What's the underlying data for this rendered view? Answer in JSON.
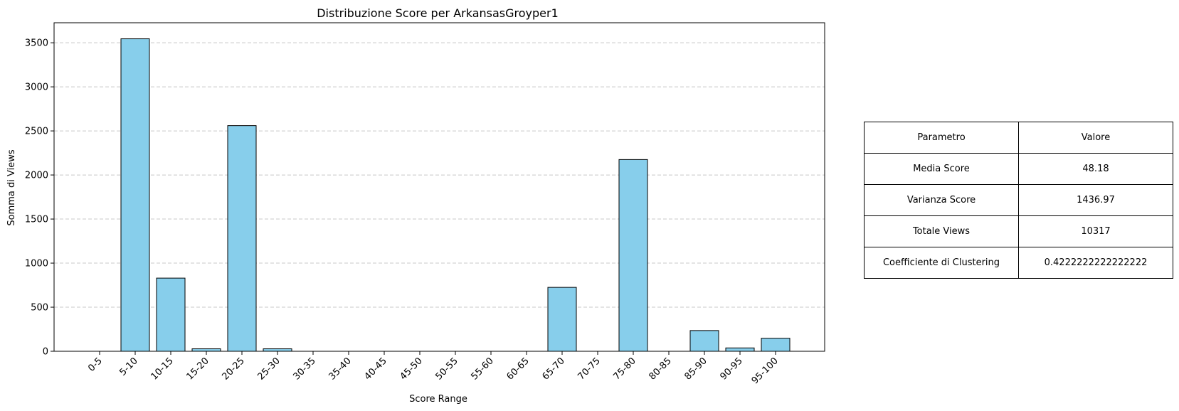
{
  "chart_data": {
    "type": "bar",
    "title": "Distribuzione Score per ArkansasGroyper1",
    "xlabel": "Score Range",
    "ylabel": "Somma di Views",
    "categories": [
      "0-5",
      "5-10",
      "10-15",
      "15-20",
      "20-25",
      "25-30",
      "30-35",
      "35-40",
      "40-45",
      "45-50",
      "50-55",
      "55-60",
      "60-65",
      "65-70",
      "70-75",
      "75-80",
      "80-85",
      "85-90",
      "90-95",
      "95-100"
    ],
    "values": [
      0,
      3545,
      830,
      28,
      2560,
      28,
      0,
      0,
      0,
      0,
      0,
      0,
      0,
      725,
      0,
      2175,
      0,
      235,
      38,
      148
    ],
    "ylim": [
      0,
      3727
    ],
    "yticks": [
      0,
      500,
      1000,
      1500,
      2000,
      2500,
      3000,
      3500
    ],
    "grid": "y-dashed",
    "bar_color": "#87ceeb",
    "edge_color": "#000000"
  },
  "table": {
    "header": {
      "param": "Parametro",
      "value": "Valore"
    },
    "rows": [
      {
        "param": "Media Score",
        "value": "48.18"
      },
      {
        "param": "Varianza Score",
        "value": "1436.97"
      },
      {
        "param": "Totale Views",
        "value": "10317"
      },
      {
        "param": "Coefficiente di Clustering",
        "value": "0.4222222222222222"
      }
    ]
  }
}
